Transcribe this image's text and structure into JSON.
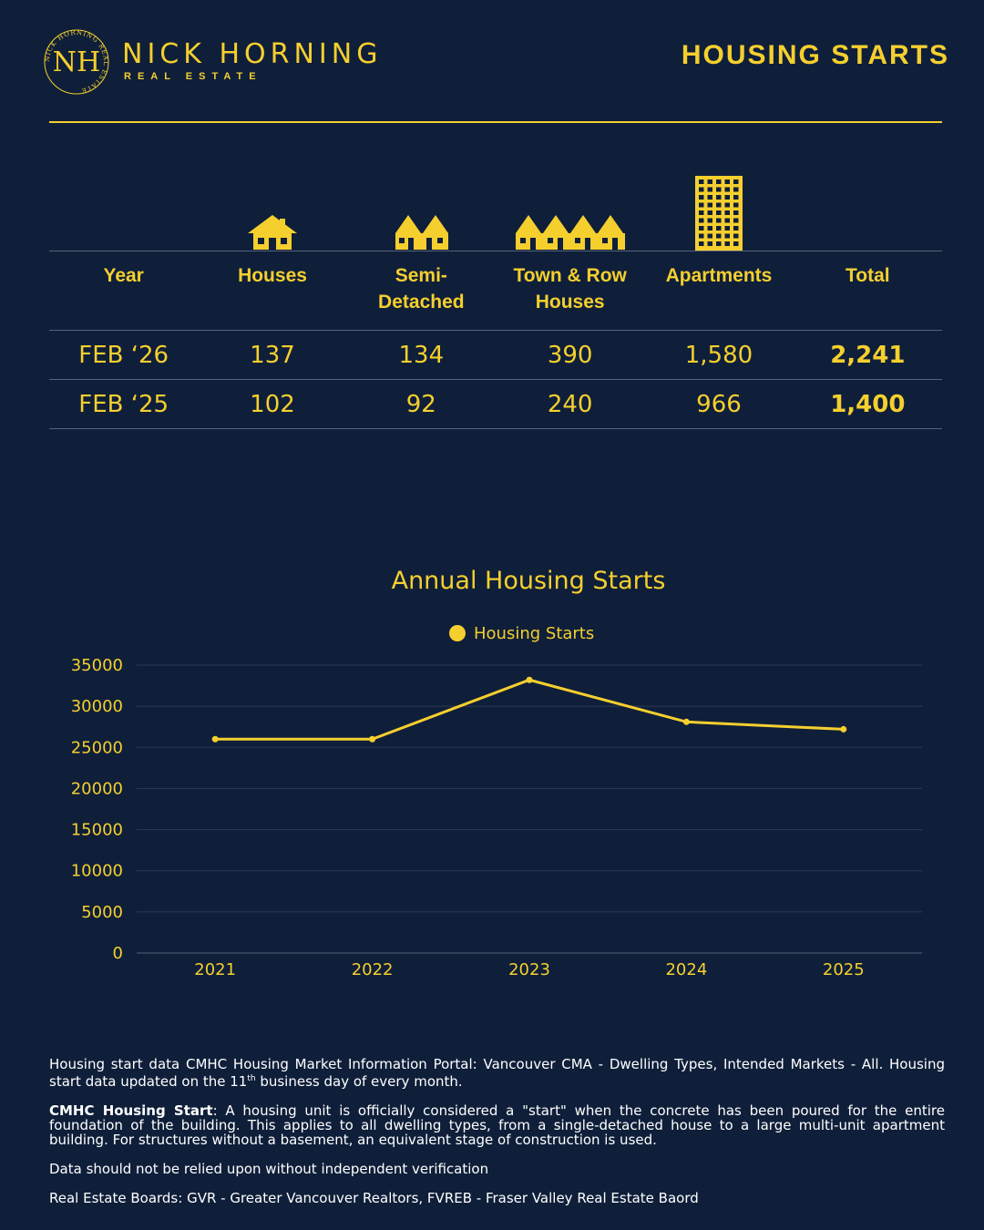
{
  "brand": {
    "name": "NICK HORNING",
    "sub": "REAL ESTATE",
    "seal_text": "NICK HORNING REAL ESTATE",
    "monogram": "NH"
  },
  "page_title": "HOUSING STARTS",
  "colors": {
    "background": "#0f1f3a",
    "accent": "#f5cf2e",
    "divider": "#56627a",
    "footer_text": "#ffffff"
  },
  "table": {
    "icons": [
      "house-icon",
      "semi-detached-icon",
      "townhouse-row-icon",
      "apartment-building-icon"
    ],
    "headers": {
      "year": "Year",
      "houses": "Houses",
      "semi_1": "Semi-",
      "semi_2": "Detached",
      "town_1": "Town & Row",
      "town_2": "Houses",
      "apartments": "Apartments",
      "total": "Total"
    },
    "rows": [
      {
        "year": "FEB ‘26",
        "houses": "137",
        "semi": "134",
        "town": "390",
        "apartments": "1,580",
        "total": "2,241"
      },
      {
        "year": "FEB ‘25",
        "houses": "102",
        "semi": "92",
        "town": "240",
        "apartments": "966",
        "total": "1,400"
      }
    ]
  },
  "chart_data": {
    "type": "line",
    "title": "Annual Housing Starts",
    "x": [
      "2021",
      "2022",
      "2023",
      "2024",
      "2025"
    ],
    "series": [
      {
        "name": "Housing Starts",
        "values": [
          26000,
          26000,
          33200,
          28100,
          27200
        ]
      }
    ],
    "ylim": [
      0,
      35000
    ],
    "yticks": [
      "35000",
      "30000",
      "25000",
      "20000",
      "15000",
      "10000",
      "5000",
      "0"
    ],
    "grid": true,
    "legend": "top-center",
    "xlabel": "",
    "ylabel": ""
  },
  "footer": {
    "source_1": "Housing start data CMHC Housing Market Information Portal: Vancouver CMA - Dwelling Types, Intended Markets - All. Housing start data updated on the 11",
    "source_sup": "th",
    "source_2": " business day of every month.",
    "definition_label": "CMHC Housing Start",
    "definition_text": ": A housing unit is officially considered a \"start\" when the concrete has been poured for the entire foundation of the building. This applies to all dwelling types, from a single-detached house to a large multi-unit apartment building. For structures without a basement, an equivalent stage of construction is used.",
    "disclaimer": "Data should not be relied upon without independent verification",
    "boards": "Real Estate Boards:  GVR - Greater Vancouver Realtors, FVREB - Fraser Valley Real Estate Baord"
  }
}
